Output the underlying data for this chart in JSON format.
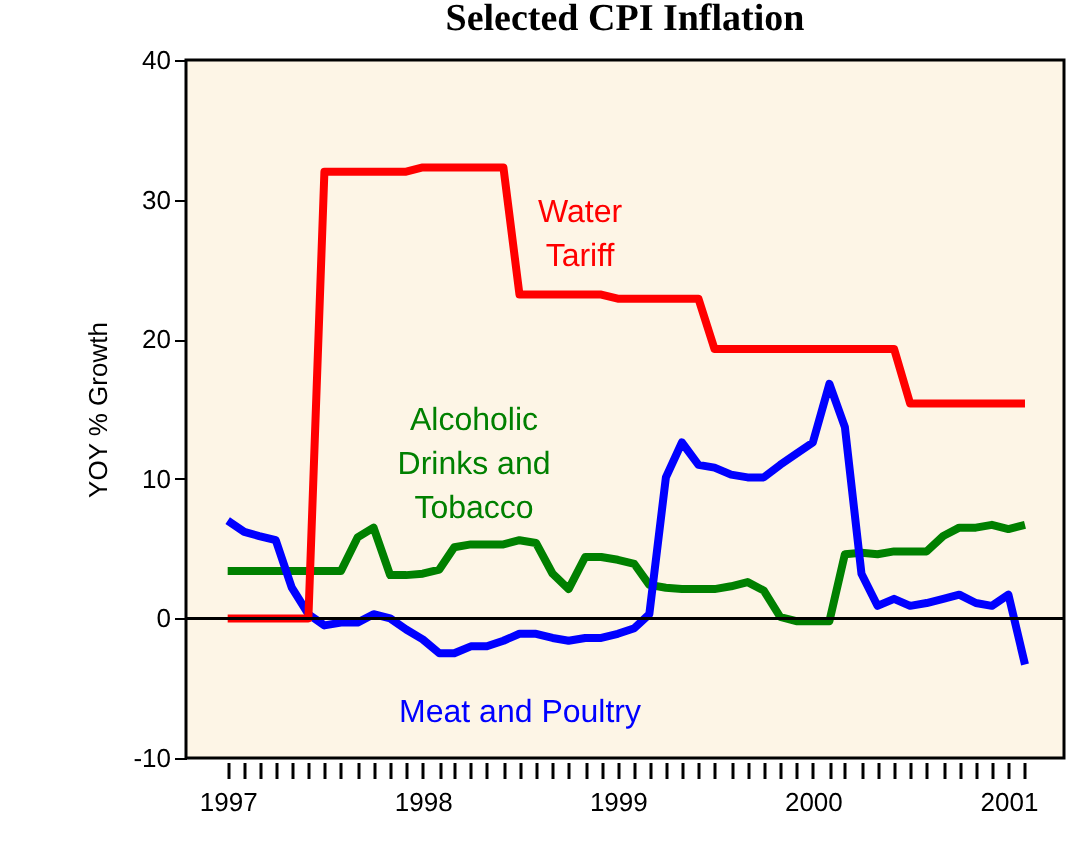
{
  "chart_data": {
    "type": "line",
    "title": "Selected CPI Inflation",
    "ylabel": "YOY % Growth",
    "x": [
      "1997-01",
      "1997-02",
      "1997-03",
      "1997-04",
      "1997-05",
      "1997-06",
      "1997-07",
      "1997-08",
      "1997-09",
      "1997-10",
      "1997-11",
      "1997-12",
      "1998-01",
      "1998-02",
      "1998-03",
      "1998-04",
      "1998-05",
      "1998-06",
      "1998-07",
      "1998-08",
      "1998-09",
      "1998-10",
      "1998-11",
      "1998-12",
      "1999-01",
      "1999-02",
      "1999-03",
      "1999-04",
      "1999-05",
      "1999-06",
      "1999-07",
      "1999-08",
      "1999-09",
      "1999-10",
      "1999-11",
      "1999-12",
      "2000-01",
      "2000-02",
      "2000-03",
      "2000-04",
      "2000-05",
      "2000-06",
      "2000-07",
      "2000-08",
      "2000-09",
      "2000-10",
      "2000-11",
      "2000-12",
      "2001-01",
      "2001-02"
    ],
    "series": [
      {
        "name": "Alcoholic\nDrinks and\nTobacco",
        "color": "#008000",
        "values": [
          3.4,
          3.4,
          3.4,
          3.4,
          3.4,
          3.4,
          3.4,
          3.4,
          5.8,
          6.5,
          3.1,
          3.1,
          3.2,
          3.5,
          5.1,
          5.3,
          5.3,
          5.3,
          5.6,
          5.4,
          3.2,
          2.1,
          4.4,
          4.4,
          4.2,
          3.9,
          2.4,
          2.2,
          2.1,
          2.1,
          2.1,
          2.3,
          2.6,
          2.0,
          0.1,
          -0.2,
          -0.2,
          -0.2,
          4.6,
          4.7,
          4.6,
          4.8,
          4.8,
          4.8,
          5.9,
          6.5,
          6.5,
          6.7,
          6.4,
          6.7
        ]
      },
      {
        "name": "Meat and Poultry",
        "color": "#0000ff",
        "values": [
          7.0,
          6.2,
          5.9,
          5.6,
          2.2,
          0.3,
          -0.5,
          -0.3,
          -0.3,
          0.3,
          0.0,
          -0.8,
          -1.5,
          -2.5,
          -2.5,
          -2.0,
          -2.0,
          -1.6,
          -1.1,
          -1.1,
          -1.4,
          -1.6,
          -1.4,
          -1.4,
          -1.1,
          -0.7,
          0.3,
          10.1,
          12.6,
          11.0,
          10.8,
          10.3,
          10.1,
          10.1,
          11.0,
          11.8,
          12.6,
          16.8,
          13.7,
          3.2,
          0.9,
          1.4,
          0.9,
          1.1,
          1.4,
          1.7,
          1.1,
          0.9,
          1.7,
          -3.3
        ]
      },
      {
        "name": "Water\nTariff",
        "color": "#ff0000",
        "values": [
          0,
          0,
          0,
          0,
          0,
          0,
          32,
          32,
          32,
          32,
          32,
          32,
          32.3,
          32.3,
          32.3,
          32.3,
          32.3,
          32.3,
          23.2,
          23.2,
          23.2,
          23.2,
          23.2,
          23.2,
          22.9,
          22.9,
          22.9,
          22.9,
          22.9,
          22.9,
          19.3,
          19.3,
          19.3,
          19.3,
          19.3,
          19.3,
          19.3,
          19.3,
          19.3,
          19.3,
          19.3,
          19.3,
          15.4,
          15.4,
          15.4,
          15.4,
          15.4,
          15.4,
          15.4,
          15.4
        ]
      }
    ],
    "xlim": [
      "1996-10-15",
      "2001-04-15"
    ],
    "xticks": [
      {
        "value": "1997-01",
        "label": "1997"
      },
      {
        "value": "1997-02",
        "label": null
      },
      {
        "value": "1997-03",
        "label": null
      },
      {
        "value": "1997-04",
        "label": null
      },
      {
        "value": "1997-05",
        "label": null
      },
      {
        "value": "1997-06",
        "label": null
      },
      {
        "value": "1997-07",
        "label": null
      },
      {
        "value": "1997-08",
        "label": null
      },
      {
        "value": "1997-09",
        "label": null
      },
      {
        "value": "1997-10",
        "label": null
      },
      {
        "value": "1997-11",
        "label": null
      },
      {
        "value": "1997-12",
        "label": null
      },
      {
        "value": "1998-01",
        "label": "1998"
      },
      {
        "value": "1998-02",
        "label": null
      },
      {
        "value": "1998-03",
        "label": null
      },
      {
        "value": "1998-04",
        "label": null
      },
      {
        "value": "1998-05",
        "label": null
      },
      {
        "value": "1998-06",
        "label": null
      },
      {
        "value": "1998-07",
        "label": null
      },
      {
        "value": "1998-08",
        "label": null
      },
      {
        "value": "1998-09",
        "label": null
      },
      {
        "value": "1998-10",
        "label": null
      },
      {
        "value": "1998-11",
        "label": null
      },
      {
        "value": "1998-12",
        "label": null
      },
      {
        "value": "1999-01",
        "label": "1999"
      },
      {
        "value": "1999-02",
        "label": null
      },
      {
        "value": "1999-03",
        "label": null
      },
      {
        "value": "1999-04",
        "label": null
      },
      {
        "value": "1999-05",
        "label": null
      },
      {
        "value": "1999-06",
        "label": null
      },
      {
        "value": "1999-07",
        "label": null
      },
      {
        "value": "1999-08",
        "label": null
      },
      {
        "value": "1999-09",
        "label": null
      },
      {
        "value": "1999-10",
        "label": null
      },
      {
        "value": "1999-11",
        "label": null
      },
      {
        "value": "1999-12",
        "label": null
      },
      {
        "value": "2000-01",
        "label": "2000"
      },
      {
        "value": "2000-02",
        "label": null
      },
      {
        "value": "2000-03",
        "label": null
      },
      {
        "value": "2000-04",
        "label": null
      },
      {
        "value": "2000-05",
        "label": null
      },
      {
        "value": "2000-06",
        "label": null
      },
      {
        "value": "2000-07",
        "label": null
      },
      {
        "value": "2000-08",
        "label": null
      },
      {
        "value": "2000-09",
        "label": null
      },
      {
        "value": "2000-10",
        "label": null
      },
      {
        "value": "2000-11",
        "label": null
      },
      {
        "value": "2000-12",
        "label": null
      },
      {
        "value": "2001-01",
        "label": "2001"
      },
      {
        "value": "2001-02",
        "label": null
      }
    ],
    "ylim": [
      -10,
      40
    ],
    "yticks": [
      -10,
      0,
      10,
      20,
      30,
      40
    ],
    "ref_lines": [
      {
        "axis": "y",
        "value": 0,
        "color": "#000000"
      }
    ],
    "grid": false,
    "legend": false,
    "line_style": "solid"
  }
}
